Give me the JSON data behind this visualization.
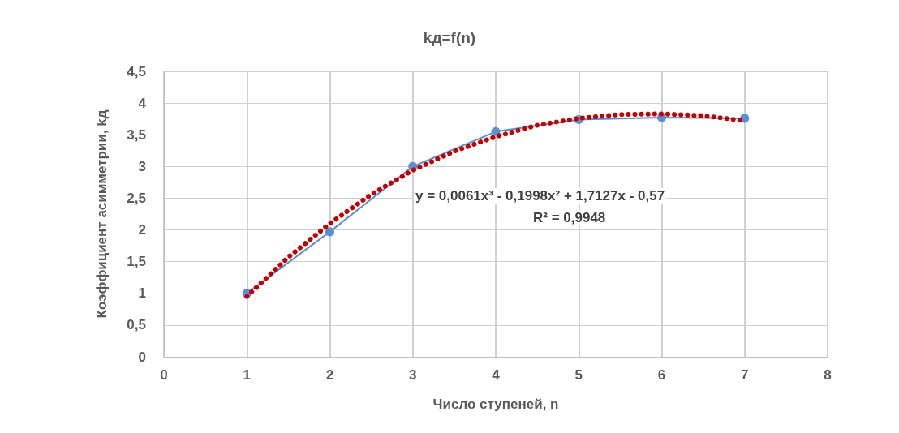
{
  "chart_data": {
    "type": "line",
    "title": "kд=f(n)",
    "xlabel": "Число ступеней, n",
    "ylabel": "Коэффициент асимметрии, kд",
    "x": [
      1,
      2,
      3,
      4,
      5,
      6,
      7
    ],
    "series": [
      {
        "color": "#5b8fd0",
        "values": [
          1,
          1.97,
          3.0,
          3.55,
          3.74,
          3.77,
          3.76
        ],
        "marker": "circle",
        "line_style": "solid"
      },
      {
        "type": "line",
        "color": "#c00000",
        "x": [
          1,
          1.5,
          2,
          2.5,
          3,
          3.5,
          4,
          4.5,
          5,
          5.5,
          6,
          6.5,
          7
        ],
        "values": [
          0.95,
          1.57,
          2.1,
          2.56,
          2.94,
          3.24,
          3.47,
          3.65,
          3.76,
          3.82,
          3.83,
          3.8,
          3.72
        ],
        "marker": "none",
        "line_style": "dotted"
      }
    ],
    "xlim": [
      0,
      8
    ],
    "xticks": [
      0,
      1,
      2,
      3,
      4,
      5,
      6,
      7,
      8
    ],
    "ylim": [
      0,
      4.5
    ],
    "yticks": [
      0,
      {
        "value": 0.5,
        "label": "0,5"
      },
      1,
      {
        "value": 1.5,
        "label": "1,5"
      },
      2,
      {
        "value": 2.5,
        "label": "2,5"
      },
      3,
      {
        "value": 3.5,
        "label": "3,5"
      },
      4,
      {
        "value": 4.5,
        "label": "4,5"
      }
    ],
    "grid": true,
    "annotations": [
      "y = 0,0061x³ - 0,1998x² + 1,7127x - 0,57",
      "R² = 0,9948"
    ]
  }
}
